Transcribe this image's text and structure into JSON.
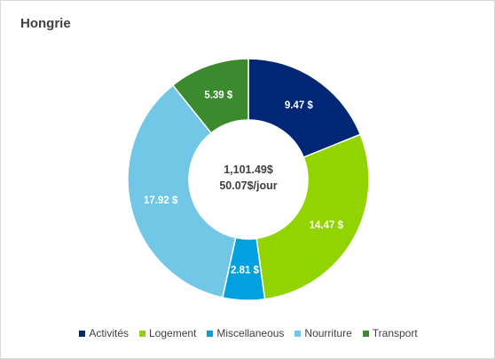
{
  "chart_data": {
    "type": "pie",
    "variant": "donut",
    "title": "Hongrie",
    "center_text": [
      "1,101.49$",
      "50.07$/jour"
    ],
    "categories": [
      "Activités",
      "Logement",
      "Miscellaneous",
      "Nourriture",
      "Transport"
    ],
    "values": [
      9.47,
      14.47,
      2.81,
      17.92,
      5.39
    ],
    "labels": [
      "9.47  $",
      "14.47  $",
      "2.81  $",
      "17.92  $",
      "5.39  $"
    ],
    "colors": [
      "#002776",
      "#92d400",
      "#00a1de",
      "#72c7e7",
      "#3c8a2e"
    ],
    "label_colors": [
      "#ffffff",
      "#ffffff",
      "#ffffff",
      "#ffffff",
      "#ffffff"
    ],
    "legend_position": "bottom"
  }
}
